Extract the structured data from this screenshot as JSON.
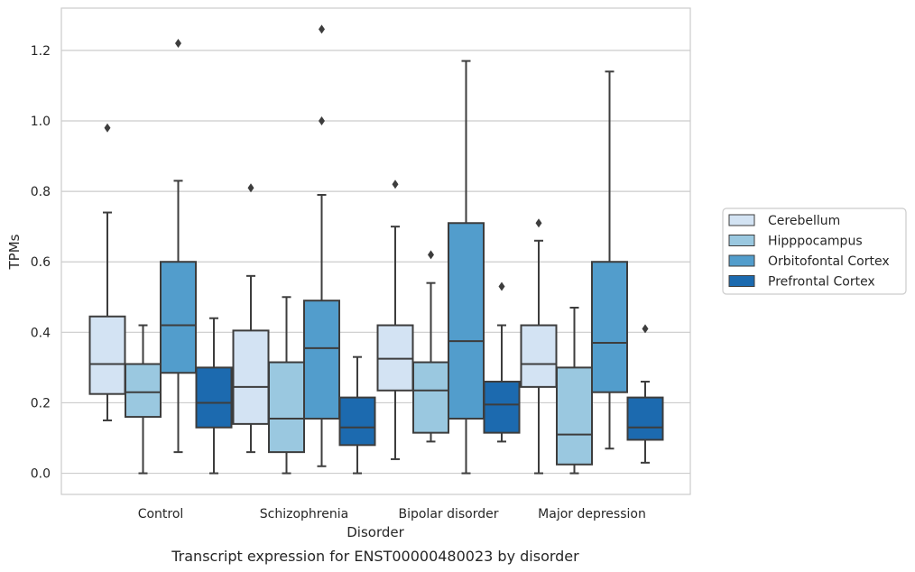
{
  "chart_data": {
    "type": "box",
    "caption": "Transcript expression for ENST00000480023 by disorder",
    "xlabel": "Disorder",
    "ylabel": "TPMs",
    "ylim": [
      -0.06,
      1.32
    ],
    "yticks": [
      0.0,
      0.2,
      0.4,
      0.6,
      0.8,
      1.0,
      1.2
    ],
    "ytick_labels": [
      "0.0",
      "0.2",
      "0.4",
      "0.6",
      "0.8",
      "1.0",
      "1.2"
    ],
    "categories": [
      "Control",
      "Schizophrenia",
      "Bipolar disorder",
      "Major depression"
    ],
    "grid": "horizontal",
    "legend_position": "right",
    "series": [
      {
        "name": "Cerebellum",
        "color": "#d3e3f3",
        "boxes": [
          {
            "q1": 0.225,
            "median": 0.31,
            "q3": 0.445,
            "whisker_low": 0.15,
            "whisker_high": 0.74,
            "outliers": [
              0.98
            ]
          },
          {
            "q1": 0.14,
            "median": 0.245,
            "q3": 0.405,
            "whisker_low": 0.06,
            "whisker_high": 0.56,
            "outliers": [
              0.81
            ]
          },
          {
            "q1": 0.235,
            "median": 0.325,
            "q3": 0.42,
            "whisker_low": 0.04,
            "whisker_high": 0.7,
            "outliers": [
              0.82
            ]
          },
          {
            "q1": 0.245,
            "median": 0.31,
            "q3": 0.42,
            "whisker_low": 0.0,
            "whisker_high": 0.66,
            "outliers": [
              0.71
            ]
          }
        ]
      },
      {
        "name": "Hipppocampus",
        "color": "#9ac8e0",
        "boxes": [
          {
            "q1": 0.16,
            "median": 0.23,
            "q3": 0.31,
            "whisker_low": 0.0,
            "whisker_high": 0.42,
            "outliers": []
          },
          {
            "q1": 0.06,
            "median": 0.155,
            "q3": 0.315,
            "whisker_low": 0.0,
            "whisker_high": 0.5,
            "outliers": []
          },
          {
            "q1": 0.115,
            "median": 0.235,
            "q3": 0.315,
            "whisker_low": 0.09,
            "whisker_high": 0.54,
            "outliers": [
              0.62
            ]
          },
          {
            "q1": 0.025,
            "median": 0.11,
            "q3": 0.3,
            "whisker_low": 0.0,
            "whisker_high": 0.47,
            "outliers": []
          }
        ]
      },
      {
        "name": "Orbitofontal Cortex",
        "color": "#529dcc",
        "boxes": [
          {
            "q1": 0.285,
            "median": 0.42,
            "q3": 0.6,
            "whisker_low": 0.06,
            "whisker_high": 0.83,
            "outliers": [
              1.22
            ]
          },
          {
            "q1": 0.155,
            "median": 0.355,
            "q3": 0.49,
            "whisker_low": 0.02,
            "whisker_high": 0.79,
            "outliers": [
              1.0,
              1.26
            ]
          },
          {
            "q1": 0.155,
            "median": 0.375,
            "q3": 0.71,
            "whisker_low": 0.0,
            "whisker_high": 1.17,
            "outliers": []
          },
          {
            "q1": 0.23,
            "median": 0.37,
            "q3": 0.6,
            "whisker_low": 0.07,
            "whisker_high": 1.14,
            "outliers": []
          }
        ]
      },
      {
        "name": "Prefrontal Cortex",
        "color": "#1c6aaf",
        "boxes": [
          {
            "q1": 0.13,
            "median": 0.2,
            "q3": 0.3,
            "whisker_low": 0.0,
            "whisker_high": 0.44,
            "outliers": []
          },
          {
            "q1": 0.08,
            "median": 0.13,
            "q3": 0.215,
            "whisker_low": 0.0,
            "whisker_high": 0.33,
            "outliers": []
          },
          {
            "q1": 0.115,
            "median": 0.195,
            "q3": 0.26,
            "whisker_low": 0.09,
            "whisker_high": 0.42,
            "outliers": [
              0.53
            ]
          },
          {
            "q1": 0.095,
            "median": 0.13,
            "q3": 0.215,
            "whisker_low": 0.03,
            "whisker_high": 0.26,
            "outliers": [
              0.41
            ]
          }
        ]
      }
    ]
  },
  "colors": {
    "grid": "#cccccc",
    "frame": "#cccccc",
    "edge": "#3d3d3d"
  }
}
